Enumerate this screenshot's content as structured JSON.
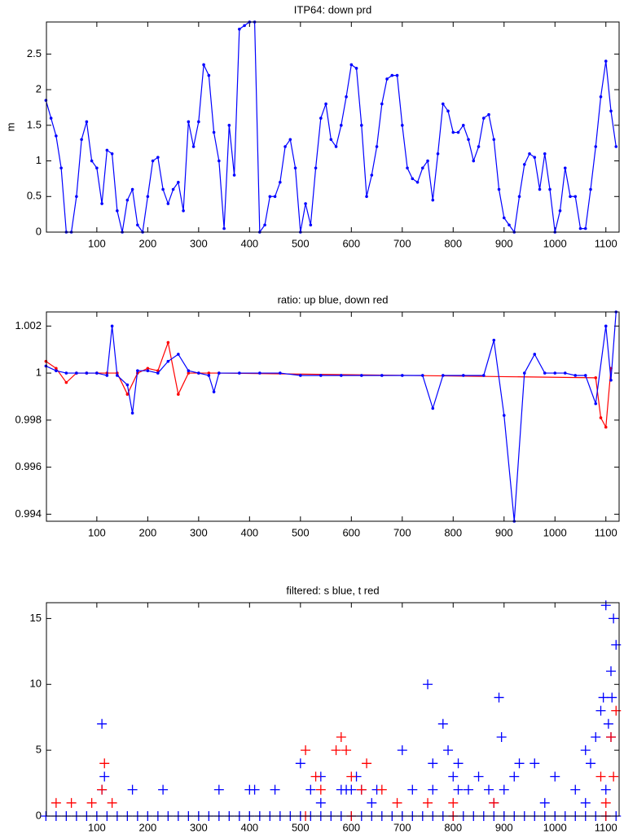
{
  "chart_data": [
    {
      "type": "line",
      "title": "ITP64: down prd",
      "ylabel": "m",
      "xlim": [
        1,
        1126
      ],
      "xticks": [
        100,
        200,
        300,
        400,
        500,
        600,
        700,
        800,
        900,
        1000,
        1100
      ],
      "ylim": [
        0,
        2.95
      ],
      "yticks": [
        0,
        0.5,
        1,
        1.5,
        2,
        2.5
      ],
      "series": [
        {
          "color": "#0000ff",
          "x": [
            0,
            10,
            20,
            30,
            40,
            50,
            60,
            70,
            80,
            90,
            100,
            110,
            120,
            130,
            140,
            150,
            160,
            170,
            180,
            190,
            200,
            210,
            220,
            230,
            240,
            250,
            260,
            270,
            280,
            290,
            300,
            310,
            320,
            330,
            340,
            350,
            360,
            370,
            380,
            390,
            400,
            410,
            420,
            430,
            440,
            450,
            460,
            470,
            480,
            490,
            500,
            510,
            520,
            530,
            540,
            550,
            560,
            570,
            580,
            590,
            600,
            610,
            620,
            630,
            640,
            650,
            660,
            670,
            680,
            690,
            700,
            710,
            720,
            730,
            740,
            750,
            760,
            770,
            780,
            790,
            800,
            810,
            820,
            830,
            840,
            850,
            860,
            870,
            880,
            890,
            900,
            910,
            920,
            930,
            940,
            950,
            960,
            970,
            980,
            990,
            1000,
            1010,
            1020,
            1030,
            1040,
            1050,
            1060,
            1070,
            1080,
            1090,
            1100,
            1110,
            1120
          ],
          "values": [
            1.85,
            1.6,
            1.35,
            0.9,
            0,
            0,
            0.5,
            1.3,
            1.55,
            1,
            0.9,
            0.4,
            1.15,
            1.1,
            0.3,
            0,
            0.45,
            0.6,
            0.1,
            0,
            0.5,
            1,
            1.05,
            0.6,
            0.4,
            0.6,
            0.7,
            0.3,
            1.55,
            1.2,
            1.55,
            2.35,
            2.2,
            1.4,
            1,
            0.05,
            1.5,
            0.8,
            2.85,
            2.9,
            2.95,
            2.95,
            0,
            0.1,
            0.5,
            0.5,
            0.7,
            1.2,
            1.3,
            0.9,
            0,
            0.4,
            0.1,
            0.9,
            1.6,
            1.8,
            1.3,
            1.2,
            1.5,
            1.9,
            2.35,
            2.3,
            1.5,
            0.5,
            0.8,
            1.2,
            1.8,
            2.15,
            2.2,
            2.2,
            1.5,
            0.9,
            0.75,
            0.7,
            0.9,
            1,
            0.45,
            1.1,
            1.8,
            1.7,
            1.4,
            1.4,
            1.5,
            1.3,
            1,
            1.2,
            1.6,
            1.65,
            1.3,
            0.6,
            0.2,
            0.1,
            0,
            0.5,
            0.95,
            1.1,
            1.05,
            0.6,
            1.1,
            0.6,
            0,
            0.3,
            0.9,
            0.5,
            0.5,
            0.05,
            0.05,
            0.6,
            1.2,
            1.9,
            2.4,
            1.7,
            1.2
          ]
        }
      ]
    },
    {
      "type": "line",
      "title": "ratio: up blue, down red",
      "xlim": [
        1,
        1126
      ],
      "xticks": [
        100,
        200,
        300,
        400,
        500,
        600,
        700,
        800,
        900,
        1000,
        1100
      ],
      "ylim": [
        0.9937,
        1.0026
      ],
      "yticks": [
        0.994,
        0.996,
        0.998,
        1,
        1.002
      ],
      "series": [
        {
          "color": "#ff0000",
          "x": [
            0,
            20,
            40,
            60,
            80,
            100,
            120,
            140,
            160,
            180,
            200,
            220,
            240,
            260,
            280,
            300,
            320,
            340,
            1080,
            1090,
            1100,
            1110
          ],
          "values": [
            1.0005,
            1.0002,
            0.9996,
            1,
            1,
            1,
            1,
            1,
            0.9991,
            1,
            1.0002,
            1.0001,
            1.0013,
            0.9991,
            1,
            1,
            1,
            1,
            0.9998,
            0.9981,
            0.9977,
            1.0002
          ]
        },
        {
          "color": "#0000ff",
          "x": [
            0,
            20,
            40,
            60,
            80,
            100,
            120,
            130,
            140,
            160,
            170,
            180,
            200,
            220,
            240,
            260,
            280,
            300,
            320,
            330,
            340,
            380,
            420,
            460,
            500,
            540,
            580,
            620,
            660,
            700,
            740,
            760,
            780,
            820,
            860,
            880,
            900,
            920,
            940,
            960,
            980,
            1000,
            1020,
            1040,
            1060,
            1080,
            1100,
            1110,
            1120
          ],
          "values": [
            1.0003,
            1.0001,
            1,
            1,
            1,
            1,
            0.9999,
            1.002,
            0.9999,
            0.9995,
            0.9983,
            1.0001,
            1.0001,
            1,
            1.0005,
            1.0008,
            1.0001,
            1,
            0.9999,
            0.9992,
            1,
            1,
            1,
            1,
            0.9999,
            0.9999,
            0.9999,
            0.9999,
            0.9999,
            0.9999,
            0.9999,
            0.9985,
            0.9999,
            0.9999,
            0.9999,
            1.0014,
            0.9982,
            0.9937,
            1,
            1.0008,
            1,
            1,
            1,
            0.9999,
            0.9999,
            0.9987,
            1.002,
            0.9997,
            1.0026
          ]
        }
      ]
    },
    {
      "type": "scatter",
      "title": "filtered: s blue, t red",
      "xlim": [
        1,
        1126
      ],
      "xticks": [
        100,
        200,
        300,
        400,
        500,
        600,
        700,
        800,
        900,
        1000,
        1100
      ],
      "ylim": [
        0,
        16.2
      ],
      "yticks": [
        0,
        5,
        10,
        15
      ],
      "series": [
        {
          "color": "#0000ff",
          "x": [
            0,
            20,
            40,
            60,
            80,
            100,
            120,
            140,
            160,
            180,
            200,
            220,
            240,
            260,
            280,
            300,
            320,
            340,
            360,
            380,
            400,
            420,
            440,
            460,
            480,
            500,
            520,
            540,
            560,
            580,
            600,
            620,
            640,
            660,
            680,
            700,
            720,
            740,
            760,
            780,
            800,
            820,
            840,
            860,
            880,
            900,
            920,
            940,
            960,
            980,
            1000,
            1020,
            1040,
            1060,
            1080,
            1100,
            1120,
            110,
            115,
            110,
            170,
            230,
            340,
            400,
            410,
            450,
            500,
            520,
            540,
            580,
            600,
            610,
            620,
            640,
            650,
            700,
            720,
            750,
            760,
            780,
            790,
            800,
            810,
            830,
            850,
            870,
            890,
            895,
            900,
            920,
            930,
            960,
            1000,
            1040,
            1060,
            1070,
            1080,
            1090,
            1095,
            1100,
            1105,
            1110,
            1112,
            1115,
            1120,
            1100,
            1110,
            1060,
            540,
            590,
            760,
            810,
            880,
            980
          ],
          "values": [
            0,
            0,
            0,
            0,
            0,
            0,
            0,
            0,
            0,
            0,
            0,
            0,
            0,
            0,
            0,
            0,
            0,
            0,
            0,
            0,
            0,
            0,
            0,
            0,
            0,
            0,
            0,
            0,
            0,
            0,
            0,
            0,
            0,
            0,
            0,
            0,
            0,
            0,
            0,
            0,
            0,
            0,
            0,
            0,
            0,
            0,
            0,
            0,
            0,
            0,
            0,
            0,
            0,
            0,
            0,
            0,
            0,
            7,
            3,
            2,
            2,
            2,
            2,
            2,
            2,
            2,
            4,
            2,
            1,
            2,
            2,
            3,
            2,
            1,
            2,
            5,
            2,
            10,
            4,
            7,
            5,
            3,
            4,
            2,
            3,
            2,
            9,
            6,
            2,
            3,
            4,
            4,
            3,
            2,
            5,
            4,
            6,
            8,
            9,
            16,
            7,
            11,
            9,
            15,
            13,
            2,
            6,
            1,
            3,
            2,
            2,
            2,
            1,
            1
          ]
        },
        {
          "color": "#ff0000",
          "x": [
            20,
            50,
            90,
            110,
            115,
            130,
            510,
            530,
            540,
            570,
            580,
            590,
            600,
            620,
            630,
            660,
            690,
            750,
            800,
            880,
            1090,
            1100,
            1110,
            1115,
            1120,
            1100,
            600,
            510,
            800
          ],
          "values": [
            1,
            1,
            1,
            2,
            4,
            1,
            5,
            3,
            2,
            5,
            6,
            5,
            3,
            2,
            4,
            2,
            1,
            1,
            1,
            1,
            3,
            1,
            6,
            3,
            8,
            0,
            0,
            0,
            0
          ]
        }
      ]
    }
  ]
}
